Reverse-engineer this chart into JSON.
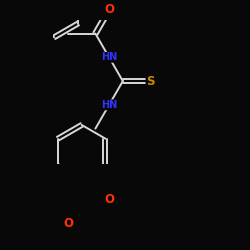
{
  "bg_color": "#080808",
  "bond_color": "#d8d8d8",
  "bond_width": 1.4,
  "atom_colors": {
    "N": "#3333ff",
    "O": "#ff3300",
    "S": "#cc8800"
  },
  "font_size": 7.0,
  "fig_width": 2.5,
  "fig_height": 2.5,
  "dpi": 100,
  "xlim": [
    0.0,
    1.0
  ],
  "ylim": [
    0.05,
    1.05
  ]
}
